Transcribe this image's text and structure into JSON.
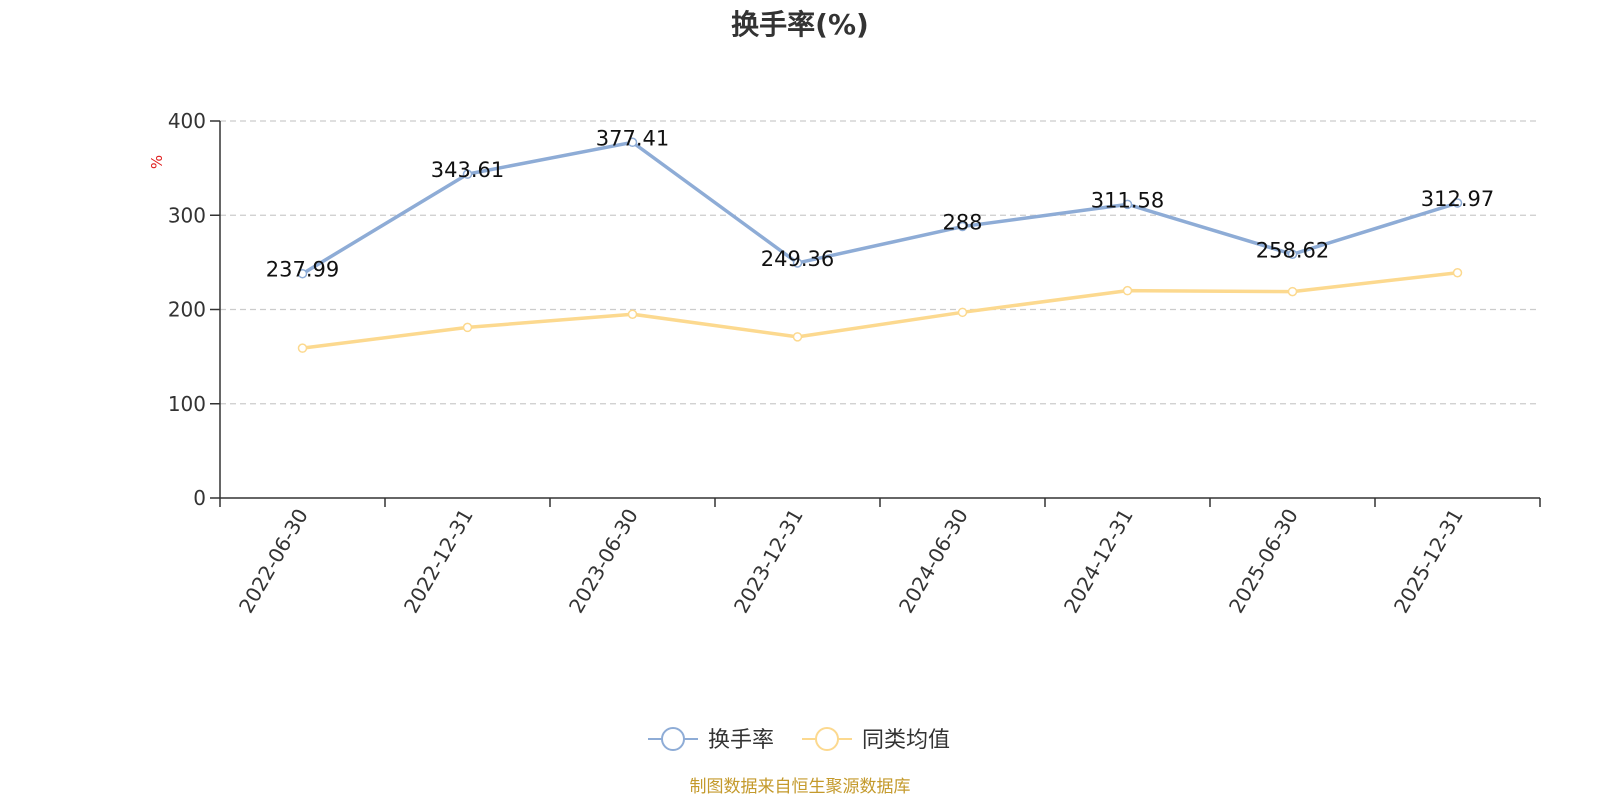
{
  "chart_data": {
    "type": "line",
    "title": "换手率(%)",
    "ylabel": "%",
    "xlabel": "",
    "ylim": [
      0,
      400
    ],
    "yticks": [
      0,
      100,
      200,
      300,
      400
    ],
    "grid": true,
    "categories": [
      "2022-06-30",
      "2022-12-31",
      "2023-06-30",
      "2023-12-31",
      "2024-06-30",
      "2024-12-31",
      "2025-06-30",
      "2025-12-31"
    ],
    "series": [
      {
        "name": "换手率",
        "color": "#8eacd6",
        "values": [
          237.99,
          343.61,
          377.41,
          249.36,
          288,
          311.58,
          258.62,
          312.97
        ],
        "data_labels": [
          "237.99",
          "343.61",
          "377.41",
          "249.36",
          "288",
          "311.58",
          "258.62",
          "312.97"
        ]
      },
      {
        "name": "同类均值",
        "color": "#fcd98f",
        "values": [
          159,
          181,
          195,
          171,
          197,
          220,
          219,
          239
        ]
      }
    ],
    "legend_position": "bottom-center"
  },
  "footer": {
    "source": "制图数据来自恒生聚源数据库",
    "source_color": "#c49a2c"
  },
  "colors": {
    "unit_label": "#e02020",
    "axis": "#333333",
    "grid": "#cccccc"
  }
}
